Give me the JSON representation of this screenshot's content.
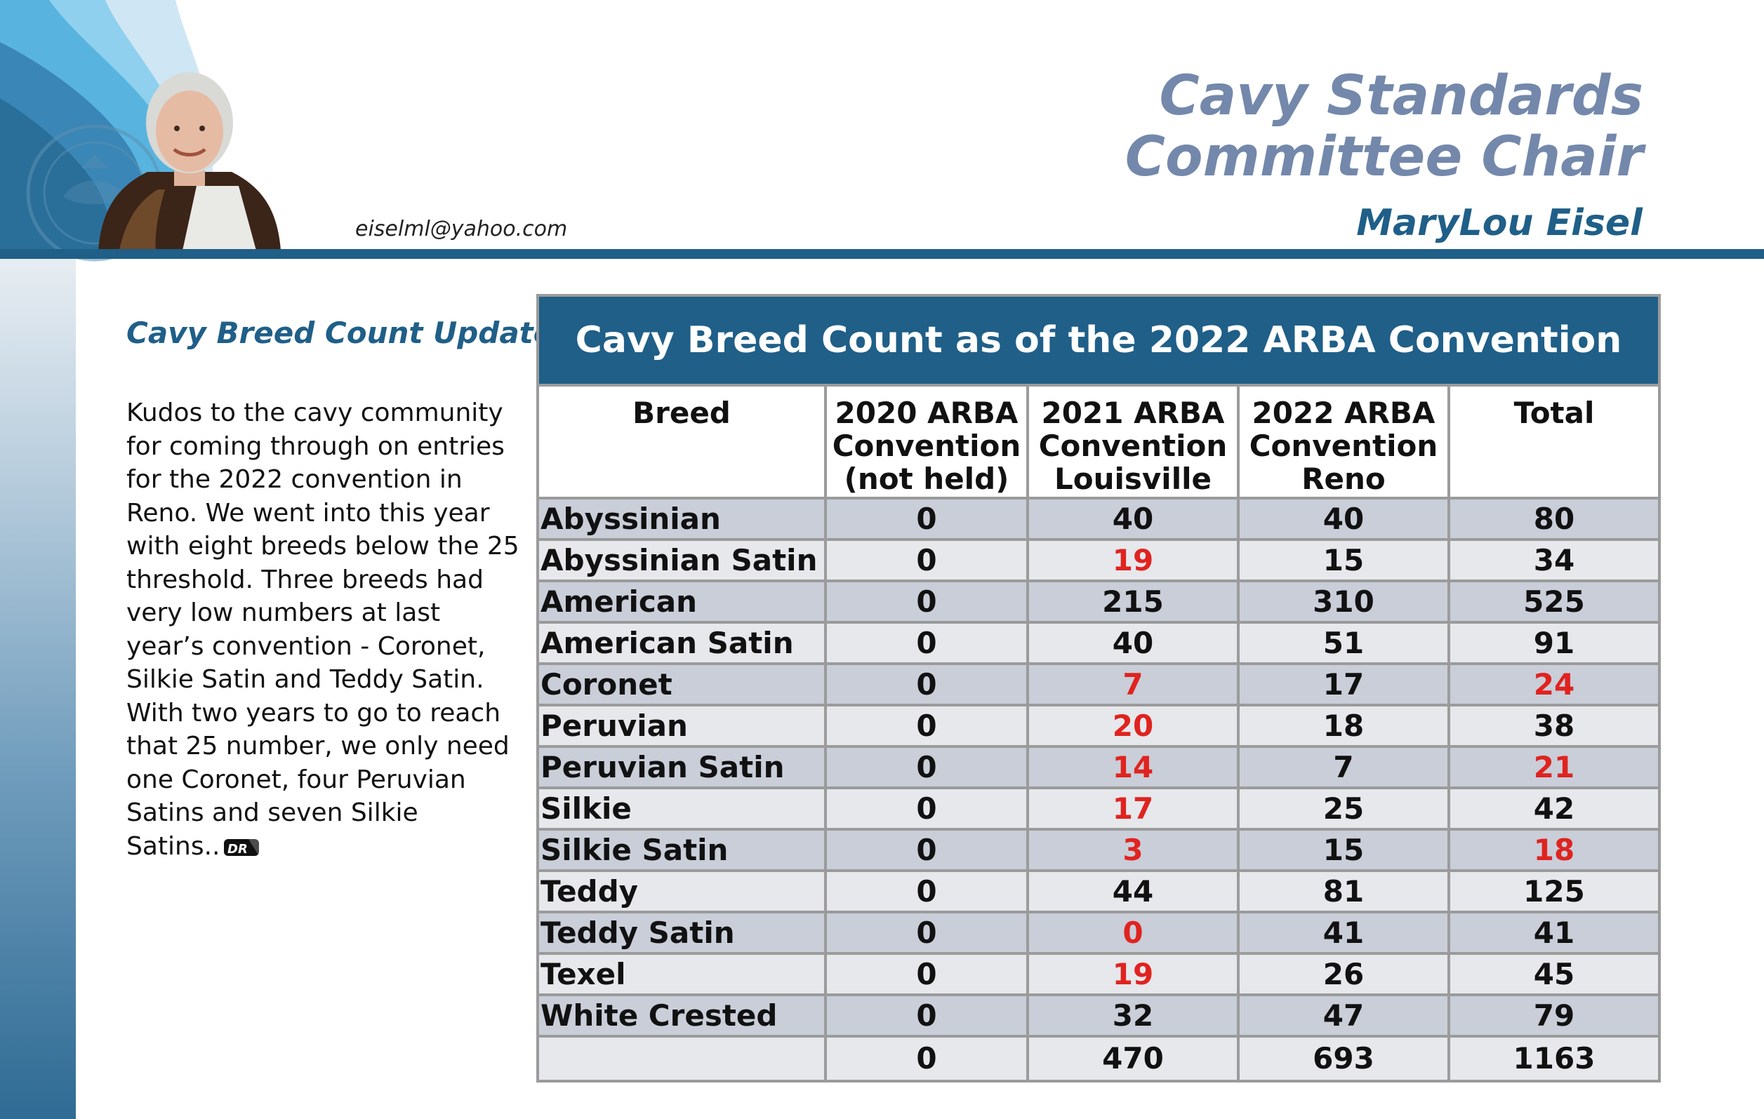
{
  "header": {
    "title_line1": "Cavy Standards",
    "title_line2": "Committee Chair",
    "author": "MaryLou Eisel",
    "email": "eiselml@yahoo.com"
  },
  "article": {
    "heading": "Cavy Breed Count Update",
    "body": "Kudos to the cavy community for coming through on entries for the 2022 convention in Reno.  We went into this year with eight breeds below the 25 threshold.  Three breeds had very low numbers at last year’s convention - Coronet, Silkie Satin and Teddy Satin.  With two years to go to reach that 25 number, we only need one Coronet, four Peruvian Satins and seven Silkie Satins.."
  },
  "colors": {
    "brand_blue": "#1f5f88",
    "title_slate": "#7388ab",
    "highlight_red": "#e0231f"
  },
  "chart_data": {
    "type": "table",
    "title": "Cavy Breed Count  as of the 2022 ARBA Convention",
    "columns": [
      [
        "Breed"
      ],
      [
        "2020 ARBA",
        "Convention",
        "(not held)"
      ],
      [
        "2021 ARBA",
        "Convention",
        "Louisville"
      ],
      [
        "2022 ARBA",
        "Convention",
        "Reno"
      ],
      [
        "Total"
      ]
    ],
    "rows": [
      {
        "breed": "Abyssinian",
        "c2020": "0",
        "c2021": "40",
        "c2022": "40",
        "total": "80",
        "red2021": false,
        "redTotal": false
      },
      {
        "breed": "Abyssinian Satin",
        "c2020": "0",
        "c2021": "19",
        "c2022": "15",
        "total": "34",
        "red2021": true,
        "redTotal": false
      },
      {
        "breed": "American",
        "c2020": "0",
        "c2021": "215",
        "c2022": "310",
        "total": "525",
        "red2021": false,
        "redTotal": false
      },
      {
        "breed": "American Satin",
        "c2020": "0",
        "c2021": "40",
        "c2022": "51",
        "total": "91",
        "red2021": false,
        "redTotal": false
      },
      {
        "breed": "Coronet",
        "c2020": "0",
        "c2021": "7",
        "c2022": "17",
        "total": "24",
        "red2021": true,
        "redTotal": true
      },
      {
        "breed": "Peruvian",
        "c2020": "0",
        "c2021": "20",
        "c2022": "18",
        "total": "38",
        "red2021": true,
        "redTotal": false
      },
      {
        "breed": "Peruvian Satin",
        "c2020": "0",
        "c2021": "14",
        "c2022": "7",
        "total": "21",
        "red2021": true,
        "redTotal": true
      },
      {
        "breed": "Silkie",
        "c2020": "0",
        "c2021": "17",
        "c2022": "25",
        "total": "42",
        "red2021": true,
        "redTotal": false
      },
      {
        "breed": "Silkie Satin",
        "c2020": "0",
        "c2021": "3",
        "c2022": "15",
        "total": "18",
        "red2021": true,
        "redTotal": true
      },
      {
        "breed": "Teddy",
        "c2020": "0",
        "c2021": "44",
        "c2022": "81",
        "total": "125",
        "red2021": false,
        "redTotal": false
      },
      {
        "breed": "Teddy Satin",
        "c2020": "0",
        "c2021": "0",
        "c2022": "41",
        "total": "41",
        "red2021": true,
        "redTotal": false
      },
      {
        "breed": "Texel",
        "c2020": "0",
        "c2021": "19",
        "c2022": "26",
        "total": "45",
        "red2021": true,
        "redTotal": false
      },
      {
        "breed": "White Crested",
        "c2020": "0",
        "c2021": "32",
        "c2022": "47",
        "total": "79",
        "red2021": false,
        "redTotal": false
      },
      {
        "breed": "",
        "c2020": "0",
        "c2021": "470",
        "c2022": "693",
        "total": "1163",
        "red2021": false,
        "redTotal": false
      }
    ]
  }
}
